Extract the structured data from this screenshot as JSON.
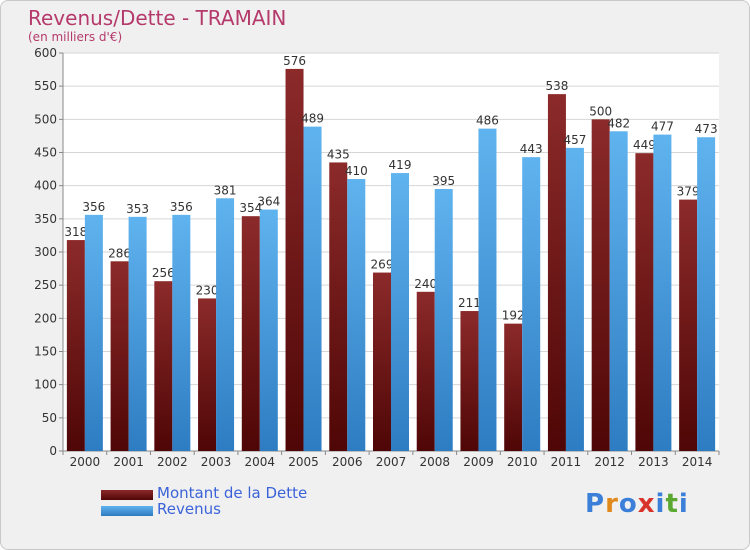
{
  "chart_data": {
    "type": "bar",
    "title": "Revenus/Dette - TRAMAIN",
    "subtitle": "(en milliers d'€)",
    "categories": [
      "2000",
      "2001",
      "2002",
      "2003",
      "2004",
      "2005",
      "2006",
      "2007",
      "2008",
      "2009",
      "2010",
      "2011",
      "2012",
      "2013",
      "2014"
    ],
    "series": [
      {
        "name": "Montant de la Dette",
        "color": "#7a1a1a",
        "values": [
          318,
          286,
          256,
          230,
          354,
          576,
          435,
          269,
          240,
          211,
          192,
          538,
          500,
          449,
          379
        ]
      },
      {
        "name": "Revenus",
        "color": "#3f9be0",
        "values": [
          356,
          353,
          356,
          381,
          364,
          489,
          410,
          419,
          395,
          486,
          443,
          457,
          482,
          477,
          473
        ]
      }
    ],
    "ylim": [
      0,
      600
    ],
    "yticks": [
      0,
      50,
      100,
      150,
      200,
      250,
      300,
      350,
      400,
      450,
      500,
      550,
      600
    ],
    "grid": true,
    "legend": "bottom-left"
  },
  "logo": {
    "text": "Proxiti",
    "letters": [
      "P",
      "r",
      "o",
      "x",
      "i",
      "t",
      "i"
    ],
    "colors": [
      "#3b7fd9",
      "#e08a1e",
      "#3b7fd9",
      "#d9342b",
      "#3b7fd9",
      "#5aa832",
      "#3b7fd9"
    ]
  }
}
